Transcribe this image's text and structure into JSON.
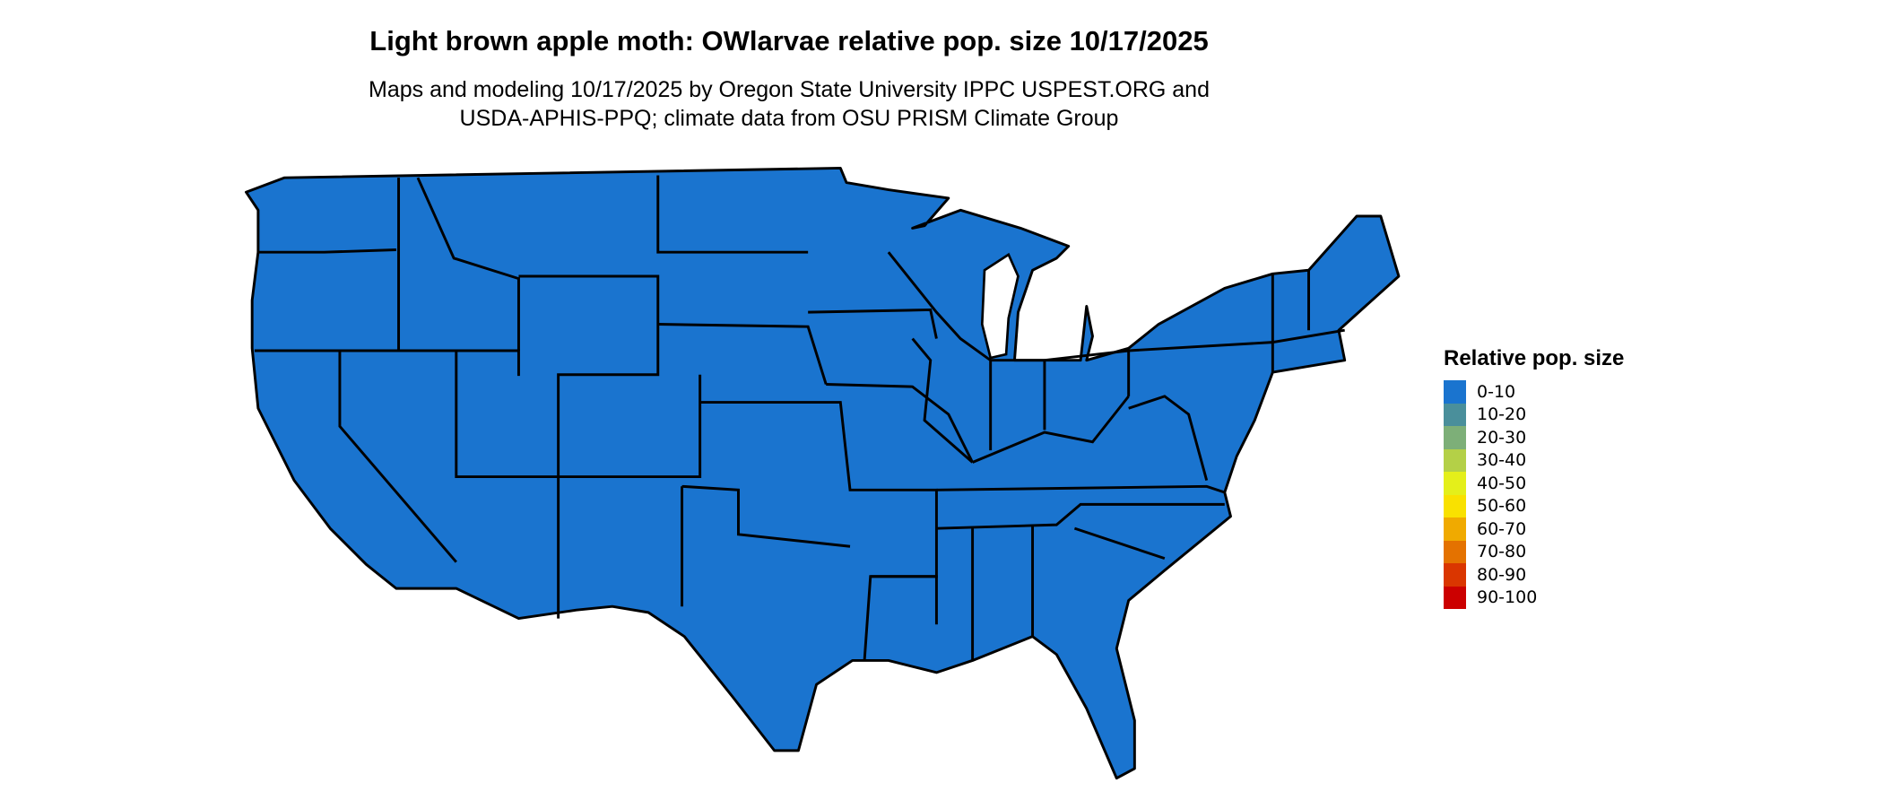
{
  "title": "Light brown apple moth: OWlarvae relative pop. size 10/17/2025",
  "subtitle_line1": "Maps and modeling 10/17/2025 by Oregon State University IPPC USPEST.ORG and",
  "subtitle_line2": "USDA-APHIS-PPQ; climate data from OSU PRISM Climate Group",
  "map": {
    "region": "Contiguous United States",
    "fill_color": "#1a74cf",
    "border_color": "#000000",
    "dominant_class": "0-10"
  },
  "legend": {
    "title": "Relative pop. size",
    "items": [
      {
        "label": "0-10",
        "color": "#1a74cf"
      },
      {
        "label": "10-20",
        "color": "#4a8f9b"
      },
      {
        "label": "20-30",
        "color": "#7daf78"
      },
      {
        "label": "30-40",
        "color": "#b4d047"
      },
      {
        "label": "40-50",
        "color": "#e4ef1a"
      },
      {
        "label": "50-60",
        "color": "#f9e100"
      },
      {
        "label": "60-70",
        "color": "#f0aa00"
      },
      {
        "label": "70-80",
        "color": "#e47200"
      },
      {
        "label": "80-90",
        "color": "#da3600"
      },
      {
        "label": "90-100",
        "color": "#cc0000"
      }
    ]
  }
}
